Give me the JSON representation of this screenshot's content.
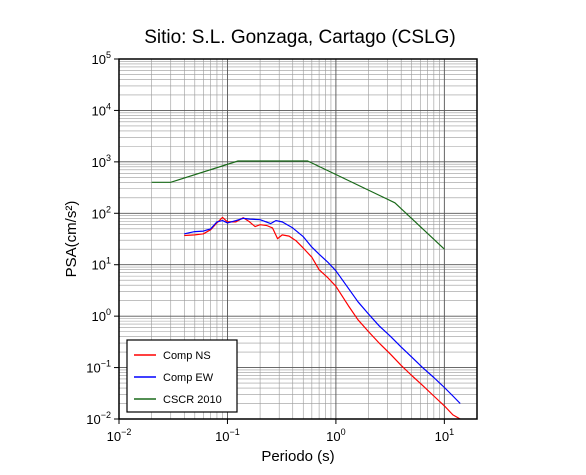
{
  "chart_data": {
    "type": "line",
    "title": "Sitio: S.L. Gonzaga, Cartago (CSLG)",
    "xlabel": "Periodo (s)",
    "ylabel": "PSA(cm/s²)",
    "x_scale": "log",
    "y_scale": "log",
    "xlim": [
      0.01,
      20
    ],
    "ylim": [
      0.01,
      100000
    ],
    "grid": true,
    "legend_position": "bottom-left",
    "x_ticks": [
      {
        "base": "10",
        "exp": "−2",
        "value": 0.01
      },
      {
        "base": "10",
        "exp": "−1",
        "value": 0.1
      },
      {
        "base": "10",
        "exp": "0",
        "value": 1
      },
      {
        "base": "10",
        "exp": "1",
        "value": 10
      }
    ],
    "y_ticks": [
      {
        "base": "10",
        "exp": "−2",
        "value": 0.01
      },
      {
        "base": "10",
        "exp": "−1",
        "value": 0.1
      },
      {
        "base": "10",
        "exp": "0",
        "value": 1
      },
      {
        "base": "10",
        "exp": "1",
        "value": 10
      },
      {
        "base": "10",
        "exp": "2",
        "value": 100
      },
      {
        "base": "10",
        "exp": "3",
        "value": 1000
      },
      {
        "base": "10",
        "exp": "4",
        "value": 10000
      },
      {
        "base": "10",
        "exp": "5",
        "value": 100000
      }
    ],
    "series": [
      {
        "name": "Comp NS",
        "color": "#ff0000",
        "points": [
          [
            0.04,
            37
          ],
          [
            0.05,
            38
          ],
          [
            0.06,
            40
          ],
          [
            0.07,
            48
          ],
          [
            0.08,
            65
          ],
          [
            0.09,
            83
          ],
          [
            0.1,
            68
          ],
          [
            0.12,
            68
          ],
          [
            0.14,
            82
          ],
          [
            0.16,
            68
          ],
          [
            0.18,
            55
          ],
          [
            0.2,
            60
          ],
          [
            0.23,
            58
          ],
          [
            0.26,
            52
          ],
          [
            0.29,
            32
          ],
          [
            0.32,
            38
          ],
          [
            0.37,
            36
          ],
          [
            0.43,
            29
          ],
          [
            0.5,
            21
          ],
          [
            0.6,
            14
          ],
          [
            0.7,
            8
          ],
          [
            0.85,
            5.5
          ],
          [
            1.0,
            3.8
          ],
          [
            1.3,
            1.6
          ],
          [
            1.6,
            0.85
          ],
          [
            2.0,
            0.5
          ],
          [
            2.5,
            0.3
          ],
          [
            3.2,
            0.18
          ],
          [
            4.0,
            0.11
          ],
          [
            5.0,
            0.07
          ],
          [
            6.3,
            0.045
          ],
          [
            8.0,
            0.028
          ],
          [
            10,
            0.018
          ],
          [
            12,
            0.012
          ],
          [
            14,
            0.01
          ]
        ]
      },
      {
        "name": "Comp EW",
        "color": "#0000ff",
        "points": [
          [
            0.04,
            40
          ],
          [
            0.05,
            44
          ],
          [
            0.06,
            45
          ],
          [
            0.07,
            50
          ],
          [
            0.08,
            68
          ],
          [
            0.09,
            72
          ],
          [
            0.1,
            65
          ],
          [
            0.12,
            72
          ],
          [
            0.14,
            80
          ],
          [
            0.16,
            77
          ],
          [
            0.2,
            75
          ],
          [
            0.25,
            63
          ],
          [
            0.28,
            72
          ],
          [
            0.32,
            68
          ],
          [
            0.4,
            52
          ],
          [
            0.5,
            35
          ],
          [
            0.6,
            22
          ],
          [
            0.7,
            16
          ],
          [
            0.85,
            11
          ],
          [
            1.0,
            7.6
          ],
          [
            1.3,
            3.5
          ],
          [
            1.6,
            1.9
          ],
          [
            2.0,
            1.1
          ],
          [
            2.5,
            0.65
          ],
          [
            3.2,
            0.4
          ],
          [
            4.0,
            0.25
          ],
          [
            5.0,
            0.16
          ],
          [
            6.3,
            0.1
          ],
          [
            8.0,
            0.064
          ],
          [
            10,
            0.041
          ],
          [
            12,
            0.028
          ],
          [
            14,
            0.02
          ]
        ]
      },
      {
        "name": "CSCR 2010",
        "color": "#1a6a1a",
        "points": [
          [
            0.02,
            400
          ],
          [
            0.03,
            400
          ],
          [
            0.125,
            1040
          ],
          [
            0.55,
            1040
          ],
          [
            3.5,
            160
          ],
          [
            10,
            20
          ]
        ]
      }
    ]
  }
}
